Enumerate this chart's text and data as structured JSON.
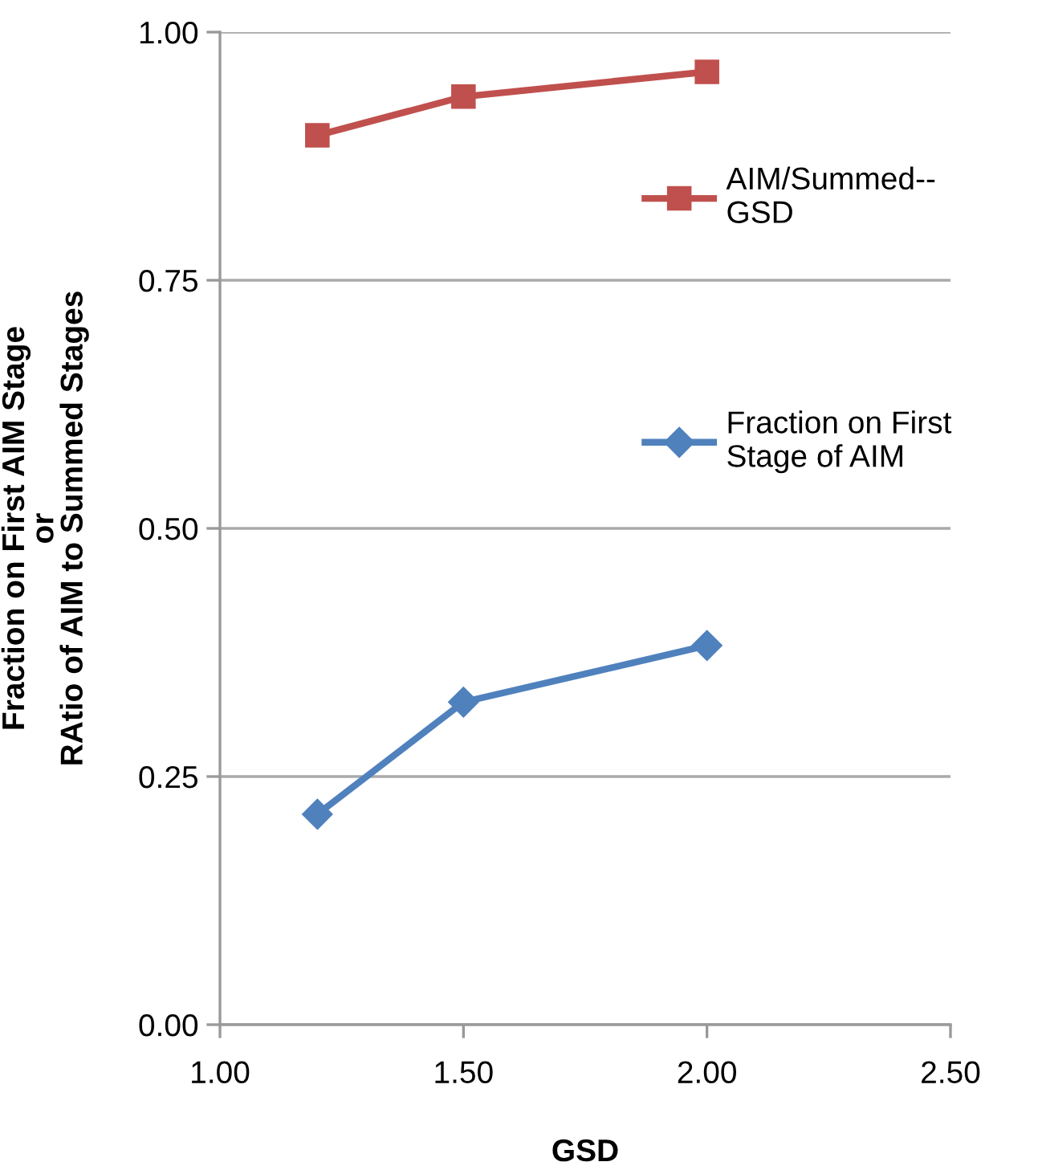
{
  "chart_data": {
    "type": "line",
    "xlabel": "GSD",
    "ylabel": "Fraction on First AIM Stage\nor\nRAtio of AIM to Summed Stages",
    "series": [
      {
        "name": "AIM/Summed--\nGSD",
        "color": "#c0504d",
        "marker": "square",
        "x": [
          1.2,
          1.5,
          2.0
        ],
        "values": [
          0.896,
          0.935,
          0.96
        ]
      },
      {
        "name": "Fraction on First\nStage of AIM",
        "color": "#4f81bd",
        "marker": "diamond",
        "x": [
          1.2,
          1.5,
          2.0
        ],
        "values": [
          0.212,
          0.325,
          0.382
        ]
      }
    ],
    "xlim": [
      1.0,
      2.5
    ],
    "xticks": [
      {
        "value": 1.0,
        "label": "1.00"
      },
      {
        "value": 1.5,
        "label": "1.50"
      },
      {
        "value": 2.0,
        "label": "2.00"
      },
      {
        "value": 2.5,
        "label": "2.50"
      }
    ],
    "ylim": [
      0.0,
      1.0
    ],
    "yticks": [
      {
        "value": 0.0,
        "label": "0.00"
      },
      {
        "value": 0.25,
        "label": "0.25"
      },
      {
        "value": 0.5,
        "label": "0.50"
      },
      {
        "value": 0.75,
        "label": "0.75"
      },
      {
        "value": 1.0,
        "label": "1.00"
      }
    ],
    "grid": "y",
    "legend": "right",
    "line_style": "solid"
  }
}
